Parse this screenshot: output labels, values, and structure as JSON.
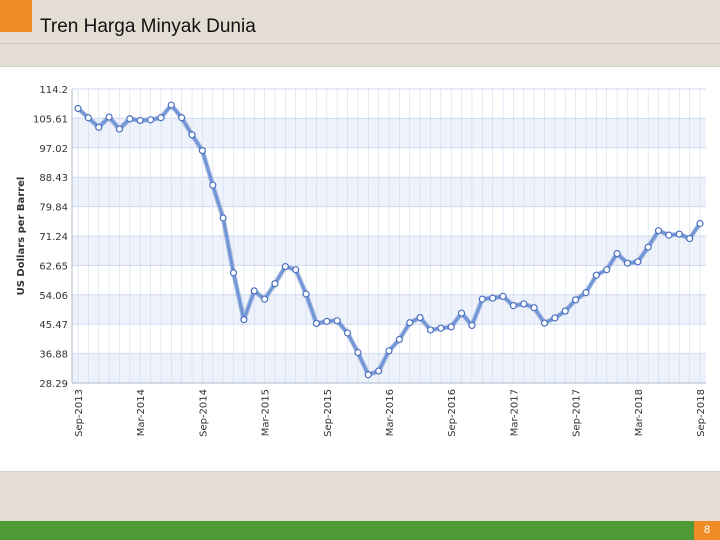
{
  "slide": {
    "title": "Tren Harga Minyak Dunia",
    "page_number": "8"
  },
  "colors": {
    "accent": "#ef8c27",
    "footer": "#4d9a36",
    "line": "#7196d8",
    "band": "#eef2fb",
    "grid": "#cfdaf0"
  },
  "chart_data": {
    "type": "line",
    "title": "",
    "xlabel": "",
    "ylabel": "US Dollars per Barrel",
    "ylim": [
      28.29,
      114.2
    ],
    "yticks": [
      "114.2",
      "105.61",
      "97.02",
      "88.43",
      "79.84",
      "71.24",
      "62.65",
      "54.06",
      "45.47",
      "36.88",
      "28.29"
    ],
    "xticks": [
      "Sep-2013",
      "Mar-2014",
      "Sep-2014",
      "Mar-2015",
      "Sep-2015",
      "Mar-2016",
      "Sep-2016",
      "Mar-2017",
      "Sep-2017",
      "Mar-2018",
      "Sep-2018"
    ],
    "grid": true,
    "series": [
      {
        "name": "",
        "x": [
          "2013-09",
          "2013-10",
          "2013-11",
          "2013-12",
          "2014-01",
          "2014-02",
          "2014-03",
          "2014-04",
          "2014-05",
          "2014-06",
          "2014-07",
          "2014-08",
          "2014-09",
          "2014-10",
          "2014-11",
          "2014-12",
          "2015-01",
          "2015-02",
          "2015-03",
          "2015-04",
          "2015-05",
          "2015-06",
          "2015-07",
          "2015-08",
          "2015-09",
          "2015-10",
          "2015-11",
          "2015-12",
          "2016-01",
          "2016-02",
          "2016-03",
          "2016-04",
          "2016-05",
          "2016-06",
          "2016-07",
          "2016-08",
          "2016-09",
          "2016-10",
          "2016-11",
          "2016-12",
          "2017-01",
          "2017-02",
          "2017-03",
          "2017-04",
          "2017-05",
          "2017-06",
          "2017-07",
          "2017-08",
          "2017-09",
          "2017-10",
          "2017-11",
          "2017-12",
          "2018-01",
          "2018-02",
          "2018-03",
          "2018-04",
          "2018-05",
          "2018-06",
          "2018-07",
          "2018-08",
          "2018-09"
        ],
        "values": [
          108.5,
          105.8,
          103.0,
          106.0,
          102.5,
          105.5,
          105.0,
          105.2,
          105.8,
          109.5,
          105.8,
          100.8,
          96.2,
          86.1,
          76.5,
          60.5,
          46.8,
          55.2,
          52.8,
          57.3,
          62.3,
          61.4,
          54.3,
          45.7,
          46.3,
          46.5,
          42.9,
          37.2,
          30.7,
          31.8,
          37.7,
          41.0,
          45.9,
          47.4,
          43.8,
          44.3,
          44.7,
          48.7,
          45.1,
          52.8,
          53.1,
          53.6,
          50.9,
          51.4,
          50.3,
          45.8,
          47.3,
          49.3,
          52.6,
          54.7,
          59.8,
          61.4,
          66.1,
          63.3,
          63.7,
          68.0,
          72.8,
          71.5,
          71.8,
          70.5,
          74.9
        ]
      }
    ]
  }
}
